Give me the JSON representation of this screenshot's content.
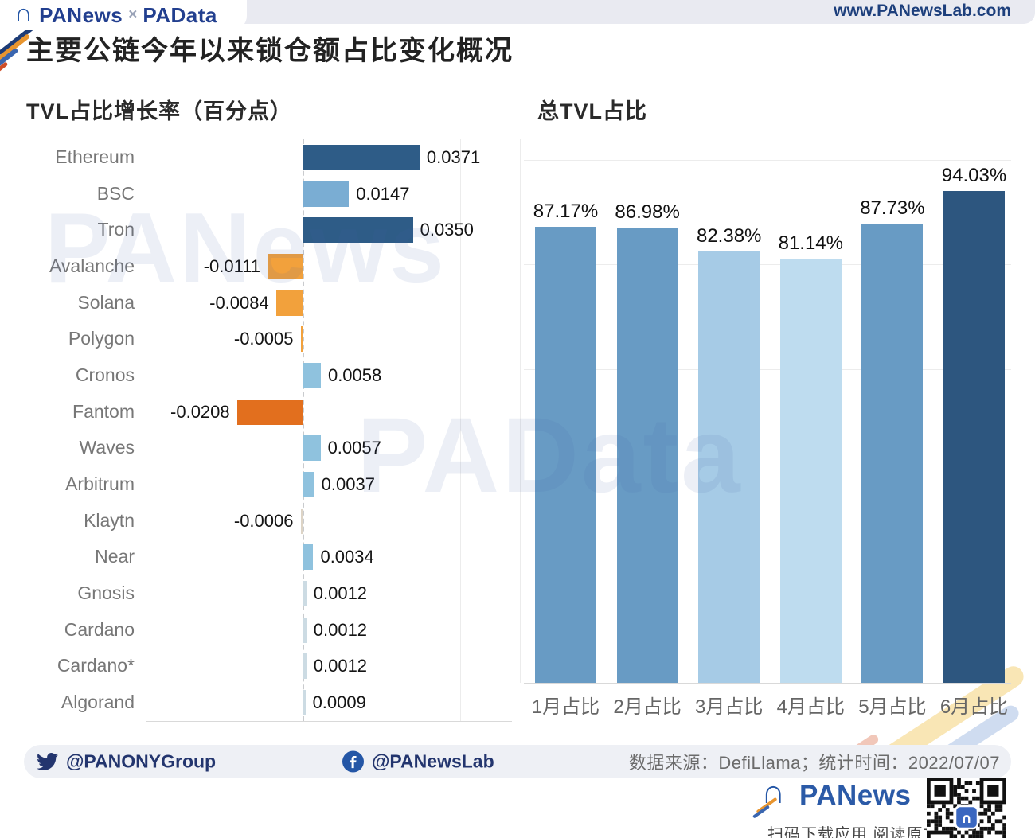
{
  "header": {
    "logo": {
      "primary": "PANews",
      "separator": "×",
      "secondary": "PAData"
    },
    "website": "www.PANewsLab.com"
  },
  "title": "主要公链今年以来锁仓额占比变化概况",
  "watermarks": {
    "chart_left": "PANews",
    "chart_right": "PAData"
  },
  "chart_data": [
    {
      "type": "bar",
      "orientation": "horizontal",
      "title": "TVL占比增长率（百分点）",
      "categories": [
        "Ethereum",
        "BSC",
        "Tron",
        "Avalanche",
        "Solana",
        "Polygon",
        "Cronos",
        "Fantom",
        "Waves",
        "Arbitrum",
        "Klaytn",
        "Near",
        "Gnosis",
        "Cardano",
        "Cardano*",
        "Algorand"
      ],
      "values": [
        0.0371,
        0.0147,
        0.035,
        -0.0111,
        -0.0084,
        -0.0005,
        0.0058,
        -0.0208,
        0.0057,
        0.0037,
        -0.0006,
        0.0034,
        0.0012,
        0.0012,
        0.0012,
        0.0009
      ],
      "value_labels": [
        "0.0371",
        "0.0147",
        "0.0350",
        "-0.0111",
        "-0.0084",
        "-0.0005",
        "0.0058",
        "-0.0208",
        "0.0057",
        "0.0037",
        "-0.0006",
        "0.0034",
        "0.0012",
        "0.0012",
        "0.0012",
        "0.0009"
      ],
      "bar_colors": [
        "#2e5c87",
        "#7aadd3",
        "#2e5c87",
        "#f2a13c",
        "#f2a13c",
        "#f2a13c",
        "#8fc2de",
        "#e26f1e",
        "#8fc2de",
        "#8fc2de",
        "#ddd4c6",
        "#8fc2de",
        "#ccdbe3",
        "#ccdbe3",
        "#ccdbe3",
        "#ccdbe3"
      ],
      "xlim": [
        -0.05,
        0.066
      ],
      "grid_values": [
        -0.05,
        0,
        0.05
      ],
      "zero_line": "dashed",
      "grid_on": true
    },
    {
      "type": "bar",
      "orientation": "vertical",
      "title": "总TVL占比",
      "categories": [
        "1月占比",
        "2月占比",
        "3月占比",
        "4月占比",
        "5月占比",
        "6月占比"
      ],
      "values": [
        87.17,
        86.98,
        82.38,
        81.14,
        87.73,
        94.03
      ],
      "value_labels": [
        "87.17%",
        "86.98%",
        "82.38%",
        "81.14%",
        "87.73%",
        "94.03%"
      ],
      "bar_colors": [
        "#689bc4",
        "#689bc4",
        "#a6cbe6",
        "#bedcef",
        "#689bc4",
        "#2d567f"
      ],
      "ylim": [
        0,
        103.9
      ],
      "grid_step": 20,
      "grid_on": true,
      "legend": "none"
    }
  ],
  "footer": {
    "twitter_handle": "@PANONYGroup",
    "facebook_handle": "@PANewsLab",
    "source_text": "数据来源：DefiLlama；统计时间：2022/07/07"
  },
  "branding": {
    "logo_text": "PANews",
    "tagline": "扫码下载应用 阅读原文"
  },
  "colors": {
    "accent_navy": "#223f8f",
    "header_bg": "#e9eaf1",
    "bar_dark_blue": "#2e5c87",
    "bar_medium_blue": "#689bc4",
    "bar_light_blue": "#8fc2de",
    "bar_orange": "#f2a13c",
    "bar_dark_orange": "#e26f1e"
  }
}
